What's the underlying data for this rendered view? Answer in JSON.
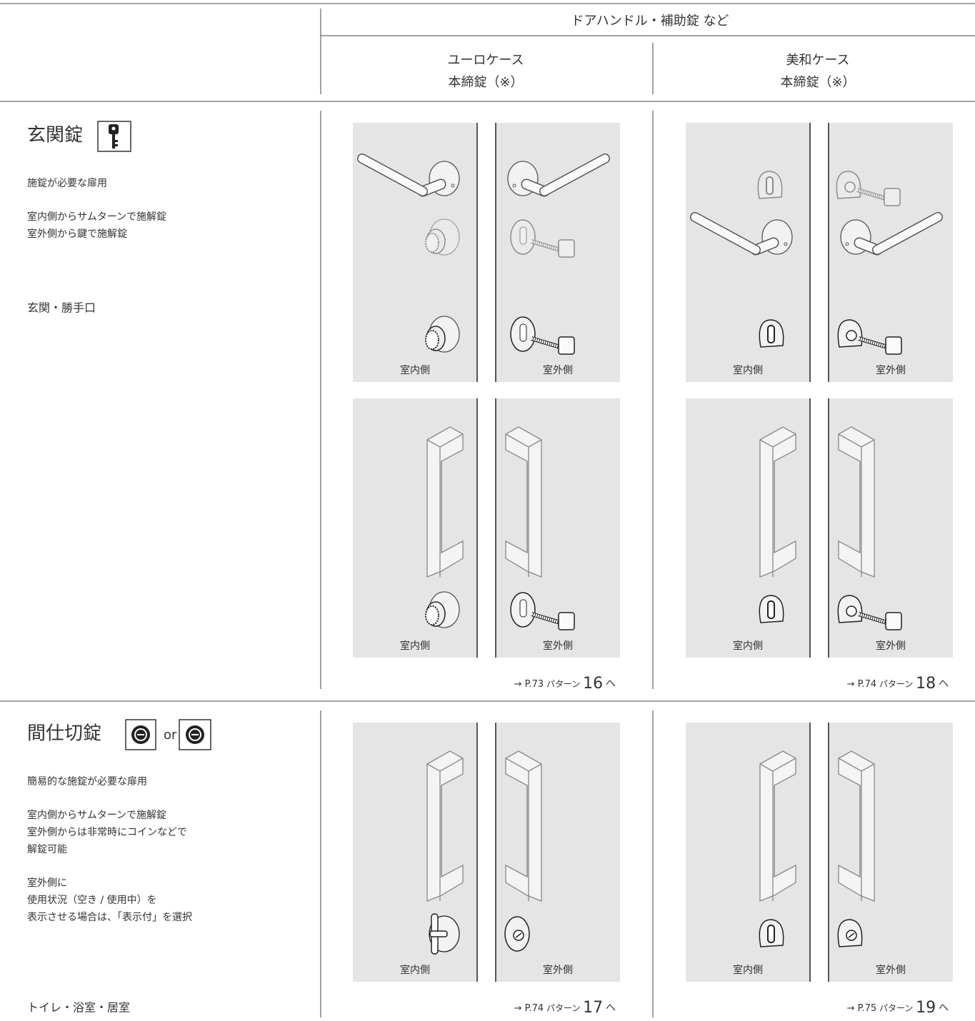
{
  "header": {
    "group": "ドアハンドル・補助錠 など",
    "columns": [
      {
        "line1": "ユーロケース",
        "line2": "本締錠（※）"
      },
      {
        "line1": "美和ケース",
        "line2": "本締錠（※）"
      }
    ]
  },
  "rows": [
    {
      "title": "玄関錠",
      "description": [
        [
          "施錠が必要な扉用"
        ],
        [
          "室内側からサムターンで施解錠",
          "室外側から鍵で施解錠"
        ]
      ],
      "usage": "玄関・勝手口",
      "cells": [
        {
          "panels": [
            {
              "inside": "室内側",
              "outside": "室外側"
            },
            {
              "inside": "室内側",
              "outside": "室外側"
            }
          ],
          "link": {
            "prefix": "→ P.73",
            "word": "パターン",
            "number": "16",
            "suffix": "へ"
          }
        },
        {
          "panels": [
            {
              "inside": "室内側",
              "outside": "室外側"
            },
            {
              "inside": "室内側",
              "outside": "室外側"
            }
          ],
          "link": {
            "prefix": "→ P.74",
            "word": "パターン",
            "number": "18",
            "suffix": "へ"
          }
        }
      ]
    },
    {
      "title": "間仕切錠",
      "connector": "or",
      "description": [
        [
          "簡易的な施錠が必要な扉用"
        ],
        [
          "室内側からサムターンで施解錠",
          "室外側からは非常時にコインなどで",
          "解錠可能"
        ],
        [
          "室外側に",
          "使用状況（空き / 使用中）を",
          "表示させる場合は、「表示付」を選択"
        ]
      ],
      "usage": "トイレ・浴室・居室",
      "cells": [
        {
          "panels": [
            {
              "inside": "室内側",
              "outside": "室外側"
            }
          ],
          "link": {
            "prefix": "→ P.74",
            "word": "パターン",
            "number": "17",
            "suffix": "へ"
          }
        },
        {
          "panels": [
            {
              "inside": "室内側",
              "outside": "室外側"
            }
          ],
          "link": {
            "prefix": "→ P.75",
            "word": "パターン",
            "number": "19",
            "suffix": "へ"
          }
        }
      ]
    }
  ]
}
